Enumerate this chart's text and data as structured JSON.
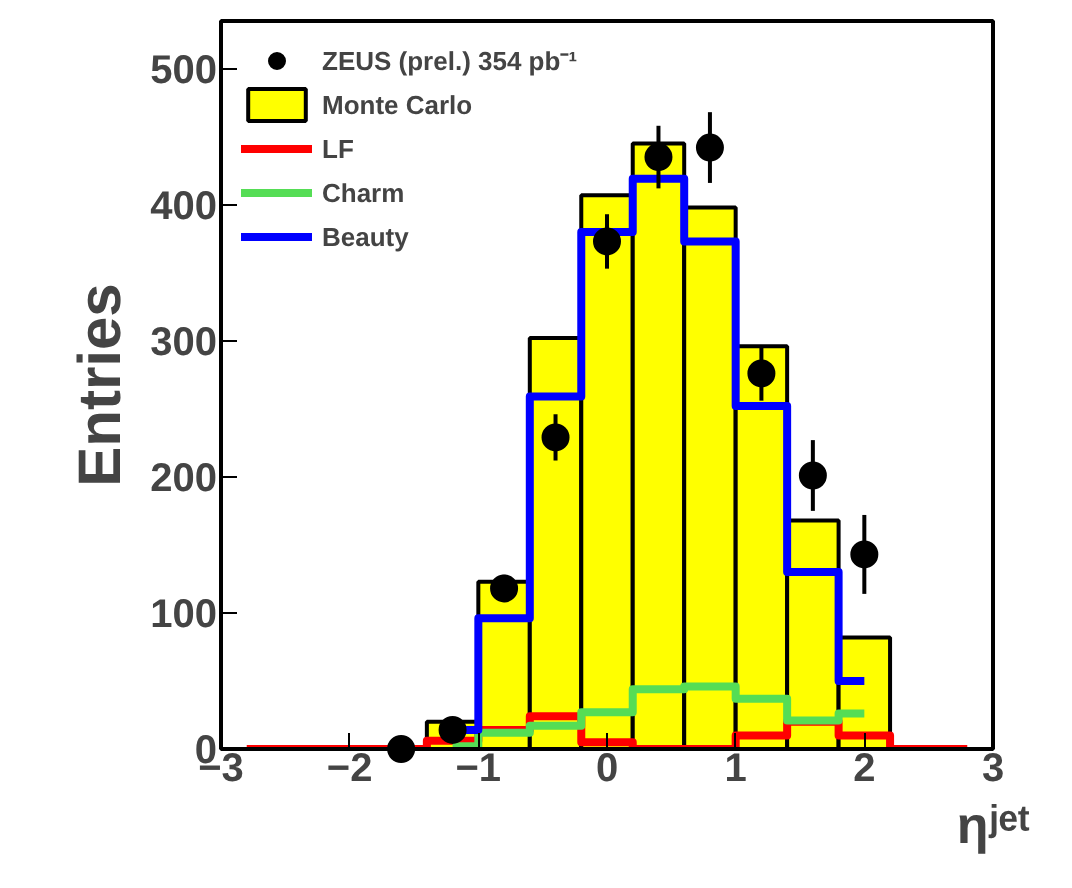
{
  "chart_data": {
    "type": "histogram",
    "xlabel": "ηʲᵉᵗ",
    "ylabel": "Entries",
    "bins": [
      -3.0,
      -2.6,
      -2.2,
      -1.8,
      -1.4,
      -1.0,
      -0.6,
      -0.2,
      0.2,
      0.6,
      1.0,
      1.4,
      1.8,
      2.2,
      2.6,
      3.0
    ],
    "series": [
      {
        "name": "ZEUS (prel.) 354 pb⁻¹",
        "type": "scatter",
        "marker": "circle",
        "color": "#000000",
        "x": [
          -1.6,
          -1.2,
          -0.8,
          -0.4,
          0.0,
          0.4,
          0.8,
          1.2,
          1.6,
          2.0
        ],
        "values": [
          0,
          14,
          118,
          229,
          373,
          435,
          442,
          276,
          201,
          143
        ],
        "errors": [
          null,
          null,
          10,
          17,
          20,
          23,
          26,
          20,
          26,
          29
        ]
      },
      {
        "name": "Monte Carlo",
        "color": "#ffff00",
        "values": [
          null,
          null,
          null,
          null,
          20,
          123,
          302,
          407,
          445,
          398,
          296,
          168,
          82,
          null,
          null
        ]
      },
      {
        "name": "LF",
        "type": "step",
        "color": "#ff0000",
        "x": [
          -2.8,
          -2.4,
          -2.0,
          -1.6,
          -1.2,
          -0.8,
          -0.4,
          0.0,
          0.4,
          0.8,
          1.2,
          1.6,
          2.0,
          2.4,
          2.8
        ],
        "values": [
          0,
          0,
          0,
          0,
          6,
          14,
          24,
          5,
          0,
          0,
          10,
          20,
          10,
          0,
          0
        ]
      },
      {
        "name": "Charm",
        "type": "step",
        "color": "#55dd55",
        "x": [
          -1.2,
          -0.8,
          -0.4,
          0.0,
          0.4,
          0.8,
          1.2,
          1.6,
          2.0
        ],
        "values": [
          2,
          12,
          17,
          27,
          44,
          46,
          37,
          21,
          26
        ]
      },
      {
        "name": "Beauty",
        "type": "step",
        "color": "#0000ff",
        "x": [
          -1.2,
          -0.8,
          -0.4,
          0.0,
          0.4,
          0.8,
          1.2,
          1.6,
          2.0
        ],
        "values": [
          14,
          96,
          259,
          380,
          419,
          373,
          252,
          130,
          50
        ]
      }
    ],
    "xlim": [
      -3,
      3
    ],
    "ylim": [
      0,
      535
    ],
    "xticks": [
      -3,
      -2,
      -1,
      0,
      1,
      2,
      3
    ],
    "yticks": [
      0,
      100,
      200,
      300,
      400,
      500
    ],
    "grid": false,
    "legend": "top left"
  }
}
